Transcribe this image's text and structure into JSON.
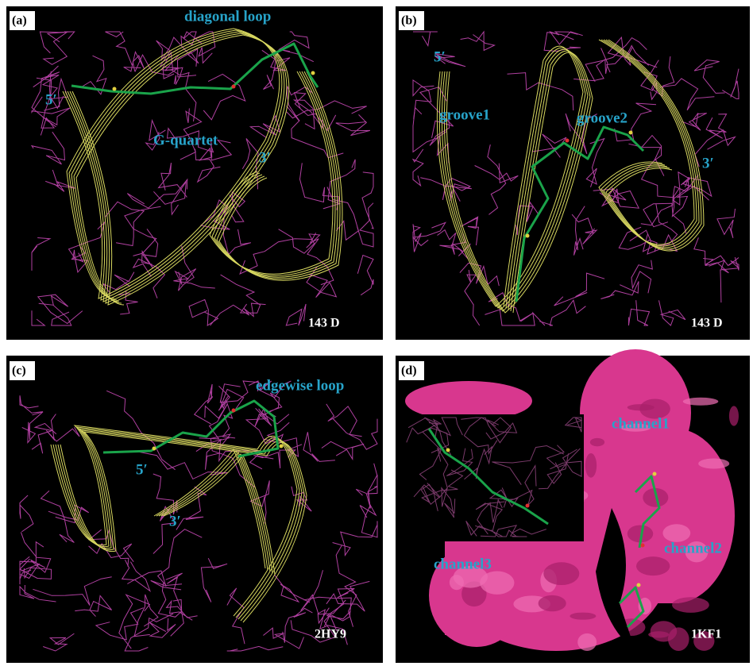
{
  "panels": [
    {
      "label": "(a)",
      "annotations": [
        "diagonal loop",
        "5′",
        "G-quartet",
        "3′"
      ],
      "structure_id": "143 D"
    },
    {
      "label": "(b)",
      "annotations": [
        "5′",
        "groove1",
        "groove2",
        "3′"
      ],
      "structure_id": "143 D"
    },
    {
      "label": "(c)",
      "annotations": [
        "edgewise loop",
        "5′",
        "3′"
      ],
      "structure_id": "2HY9"
    },
    {
      "label": "(d)",
      "annotations": [
        "channel1",
        "channel2",
        "channel3"
      ],
      "structure_id": "1KF1"
    }
  ]
}
